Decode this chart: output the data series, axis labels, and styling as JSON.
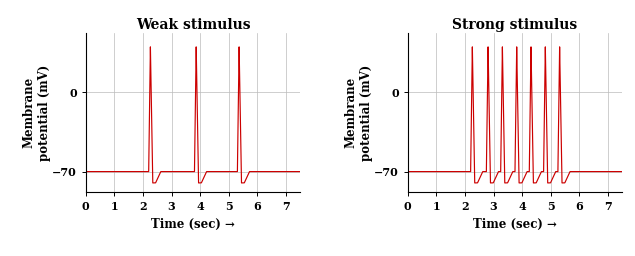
{
  "title_weak": "Weak stimulus",
  "title_strong": "Strong stimulus",
  "ylabel": "Membrane\npotential (mV)",
  "xlabel": "Time (sec) →",
  "xlim": [
    0,
    7.5
  ],
  "ylim": [
    -88,
    52
  ],
  "yticks": [
    -70,
    0
  ],
  "xticks": [
    0,
    1,
    2,
    3,
    4,
    5,
    6,
    7
  ],
  "baseline": -70,
  "peak": 40,
  "undershoot": -80,
  "line_color": "#cc0000",
  "grid_color": "#bbbbbb",
  "bg_color": "#ffffff",
  "weak_spike_times": [
    2.2,
    3.8,
    5.3
  ],
  "strong_spike_times": [
    2.2,
    2.75,
    3.25,
    3.75,
    4.25,
    4.75,
    5.25
  ],
  "title_fontsize": 10,
  "label_fontsize": 8.5,
  "tick_fontsize": 8
}
